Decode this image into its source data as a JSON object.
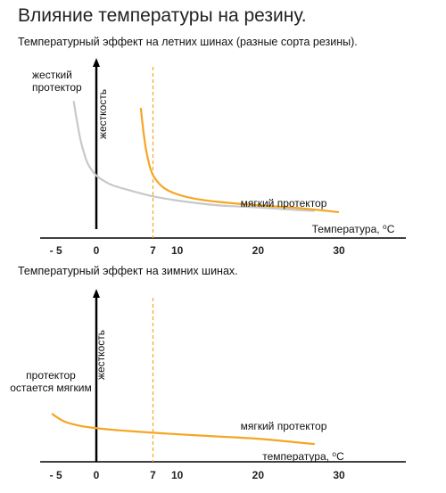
{
  "page": {
    "title": "Влияние температуры на резину."
  },
  "colors": {
    "orange": "#f5a623",
    "gray": "#c8c8c8",
    "axis": "#000000"
  },
  "chart_data": [
    {
      "type": "line",
      "title": "Температурный эффект на летних шинах (разные сорта резины).",
      "xlabel": "Температура, ⁰C",
      "ylabel": "жесткость",
      "xlim": [
        -8,
        32
      ],
      "ylim": [
        0,
        10
      ],
      "x_ticks": [
        {
          "value": -5,
          "label": "- 5"
        },
        {
          "value": 0,
          "label": "0"
        },
        {
          "value": 7,
          "label": "7"
        },
        {
          "value": 10,
          "label": "10"
        },
        {
          "value": 20,
          "label": "20"
        },
        {
          "value": 30,
          "label": "30"
        }
      ],
      "reference_line_x": 7,
      "grid": false,
      "annotations": [
        {
          "text": [
            "жесткий",
            "протектор"
          ],
          "series": 0
        },
        {
          "text": [
            "мягкий протектор"
          ],
          "series": 1
        }
      ],
      "series": [
        {
          "color": "#c8c8c8",
          "x": [
            -2.8,
            -2.5,
            -2,
            -1.5,
            -1,
            0,
            1,
            2,
            4,
            7,
            10,
            15,
            20,
            25,
            27
          ],
          "y": [
            8.5,
            7.4,
            5.8,
            4.7,
            3.9,
            3.1,
            2.7,
            2.4,
            2.05,
            1.6,
            1.3,
            0.95,
            0.8,
            0.6,
            0.55
          ]
        },
        {
          "color": "#f5a623",
          "x": [
            5.5,
            5.8,
            6.2,
            6.8,
            7.5,
            8.5,
            10,
            12,
            15,
            20,
            25,
            30
          ],
          "y": [
            8.0,
            6.4,
            4.8,
            3.4,
            2.7,
            2.15,
            1.75,
            1.45,
            1.2,
            0.95,
            0.75,
            0.45
          ]
        }
      ]
    },
    {
      "type": "line",
      "title": "Температурный эффект на зимних шинах.",
      "xlabel": "температура, ⁰C",
      "ylabel": "жесткость",
      "xlim": [
        -8,
        32
      ],
      "ylim": [
        0,
        10
      ],
      "x_ticks": [
        {
          "value": -5,
          "label": "- 5"
        },
        {
          "value": 0,
          "label": "0"
        },
        {
          "value": 7,
          "label": "7"
        },
        {
          "value": 10,
          "label": "10"
        },
        {
          "value": 20,
          "label": "20"
        },
        {
          "value": 30,
          "label": "30"
        }
      ],
      "reference_line_x": 7,
      "grid": false,
      "annotations": [
        {
          "text": [
            "протектор",
            "остается мягким"
          ],
          "series": 0
        },
        {
          "text": [
            "мягкий протектор"
          ],
          "series": 0
        }
      ],
      "series": [
        {
          "color": "#f5a623",
          "x": [
            -5.5,
            -4,
            -2,
            0,
            3,
            7,
            10,
            15,
            20,
            25,
            27
          ],
          "y": [
            2.7,
            2.2,
            1.9,
            1.75,
            1.6,
            1.45,
            1.35,
            1.2,
            1.05,
            0.8,
            0.7
          ]
        }
      ]
    }
  ]
}
